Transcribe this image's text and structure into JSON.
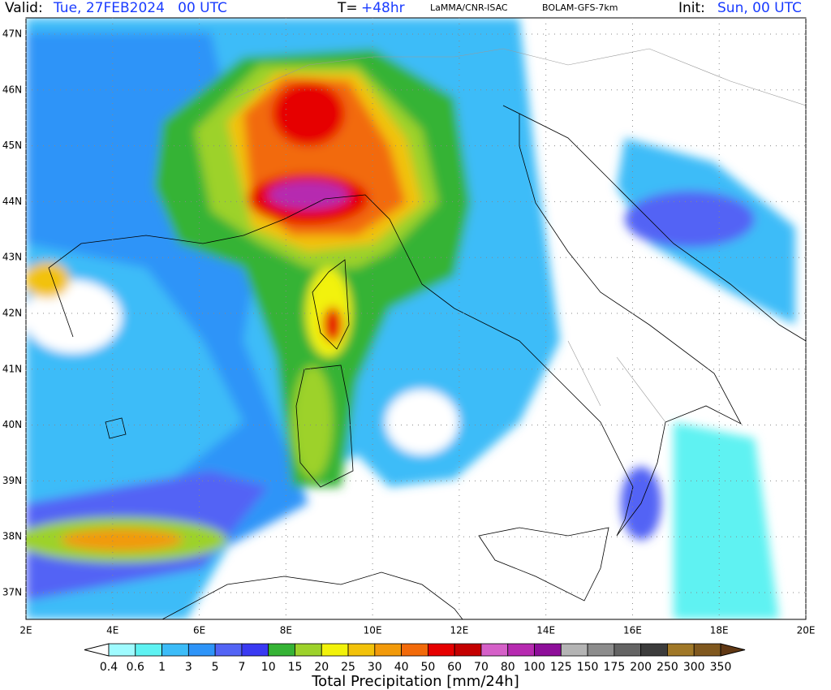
{
  "header": {
    "valid_label": "Valid:",
    "valid_value": "Tue, 27FEB2024   00 UTC",
    "lead_label": "T=",
    "lead_value": "+48hr",
    "institution": "LaMMA/CNR-ISAC",
    "model": "BOLAM-GFS-7km",
    "init_label": "Init:",
    "init_value": "Sun, 00 UTC"
  },
  "map": {
    "lat_labels": [
      "47N",
      "46N",
      "45N",
      "44N",
      "43N",
      "42N",
      "41N",
      "40N",
      "39N",
      "38N",
      "37N"
    ],
    "lon_labels": [
      "2E",
      "4E",
      "6E",
      "8E",
      "10E",
      "12E",
      "14E",
      "16E",
      "18E",
      "20E"
    ]
  },
  "colorbar": {
    "levels": [
      0.4,
      0.6,
      1,
      3,
      5,
      7,
      10,
      15,
      20,
      25,
      30,
      40,
      50,
      60,
      70,
      80,
      100,
      125,
      150,
      175,
      200,
      250,
      300,
      350
    ],
    "colors": [
      "#ffffff",
      "#9ffbff",
      "#5ef2f2",
      "#3cbcf8",
      "#2e94f8",
      "#5364f5",
      "#3a3af2",
      "#35b335",
      "#9dd22b",
      "#f2f20a",
      "#f2c20a",
      "#f29a0a",
      "#f26a0a",
      "#e60000",
      "#c40000",
      "#d560c8",
      "#b62ab0",
      "#8e0e9a",
      "#b4b4b4",
      "#8c8c8c",
      "#646464",
      "#3c3c3c",
      "#a07828",
      "#80581e",
      "#603814"
    ],
    "title": "Total Precipitation [mm/24h]"
  }
}
